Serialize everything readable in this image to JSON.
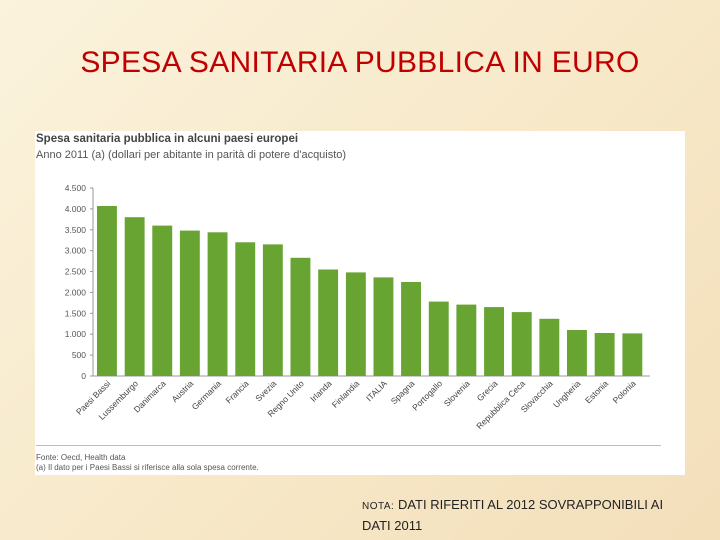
{
  "slide": {
    "title": "SPESA SANITARIA PUBBLICA IN EURO",
    "note_label": "NOTA:",
    "note_text": " DATI RIFERITI AL 2012 SOVRAPPONIBILI AI DATI 2011"
  },
  "colors": {
    "bar": "#67a431",
    "title": "#c00000"
  },
  "chart_data": {
    "type": "bar",
    "title": "Spesa sanitaria pubblica in alcuni paesi europei",
    "subtitle": "Anno 2011 (a) (dollari per abitante in parità di potere d'acquisto)",
    "xlabel": "",
    "ylabel": "",
    "ylim": [
      0,
      4500
    ],
    "yticks": [
      0,
      500,
      1000,
      1500,
      2000,
      2500,
      3000,
      3500,
      4000,
      4500
    ],
    "ytick_labels": [
      "0",
      "500",
      "1.000",
      "1.500",
      "2.000",
      "2.500",
      "3.000",
      "3.500",
      "4.000",
      "4.500"
    ],
    "categories": [
      "Paesi Bassi",
      "Lussemburgo",
      "Danimarca",
      "Austria",
      "Germania",
      "Francia",
      "Svezia",
      "Regno Unito",
      "Irlanda",
      "Finlandia",
      "ITALIA",
      "Spagna",
      "Portogallo",
      "Slovenia",
      "Grecia",
      "Repubblica Ceca",
      "Slovacchia",
      "Ungheria",
      "Estonia",
      "Polonia"
    ],
    "values": [
      4070,
      3800,
      3600,
      3480,
      3440,
      3200,
      3150,
      2830,
      2550,
      2480,
      2360,
      2250,
      1780,
      1710,
      1650,
      1530,
      1370,
      1100,
      1030,
      1020
    ],
    "footnotes": [
      "Fonte: Oecd, Health data",
      "(a) Il dato per i Paesi Bassi si riferisce alla sola spesa corrente."
    ]
  }
}
